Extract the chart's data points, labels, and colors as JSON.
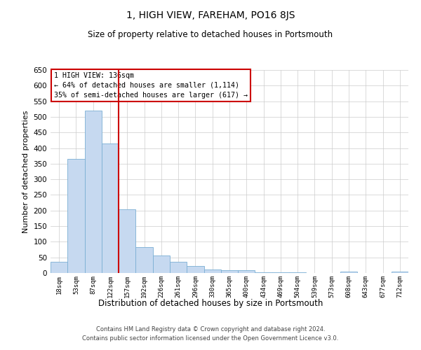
{
  "title": "1, HIGH VIEW, FAREHAM, PO16 8JS",
  "subtitle": "Size of property relative to detached houses in Portsmouth",
  "xlabel": "Distribution of detached houses by size in Portsmouth",
  "ylabel": "Number of detached properties",
  "categories": [
    "18sqm",
    "53sqm",
    "87sqm",
    "122sqm",
    "157sqm",
    "192sqm",
    "226sqm",
    "261sqm",
    "296sqm",
    "330sqm",
    "365sqm",
    "400sqm",
    "434sqm",
    "469sqm",
    "504sqm",
    "539sqm",
    "573sqm",
    "608sqm",
    "643sqm",
    "677sqm",
    "712sqm"
  ],
  "values": [
    35,
    365,
    520,
    415,
    205,
    83,
    55,
    35,
    22,
    12,
    8,
    8,
    2,
    2,
    2,
    1,
    0,
    5,
    0,
    0,
    5
  ],
  "bar_color": "#c6d9f0",
  "bar_edge_color": "#7bafd4",
  "red_line_x": 3.5,
  "ylim": [
    0,
    650
  ],
  "yticks": [
    0,
    50,
    100,
    150,
    200,
    250,
    300,
    350,
    400,
    450,
    500,
    550,
    600,
    650
  ],
  "annotation_title": "1 HIGH VIEW: 136sqm",
  "annotation_line1": "← 64% of detached houses are smaller (1,114)",
  "annotation_line2": "35% of semi-detached houses are larger (617) →",
  "annotation_box_color": "#ffffff",
  "annotation_box_edge": "#cc0000",
  "red_line_color": "#cc0000",
  "footer_line1": "Contains HM Land Registry data © Crown copyright and database right 2024.",
  "footer_line2": "Contains public sector information licensed under the Open Government Licence v3.0.",
  "background_color": "#ffffff",
  "grid_color": "#cccccc"
}
